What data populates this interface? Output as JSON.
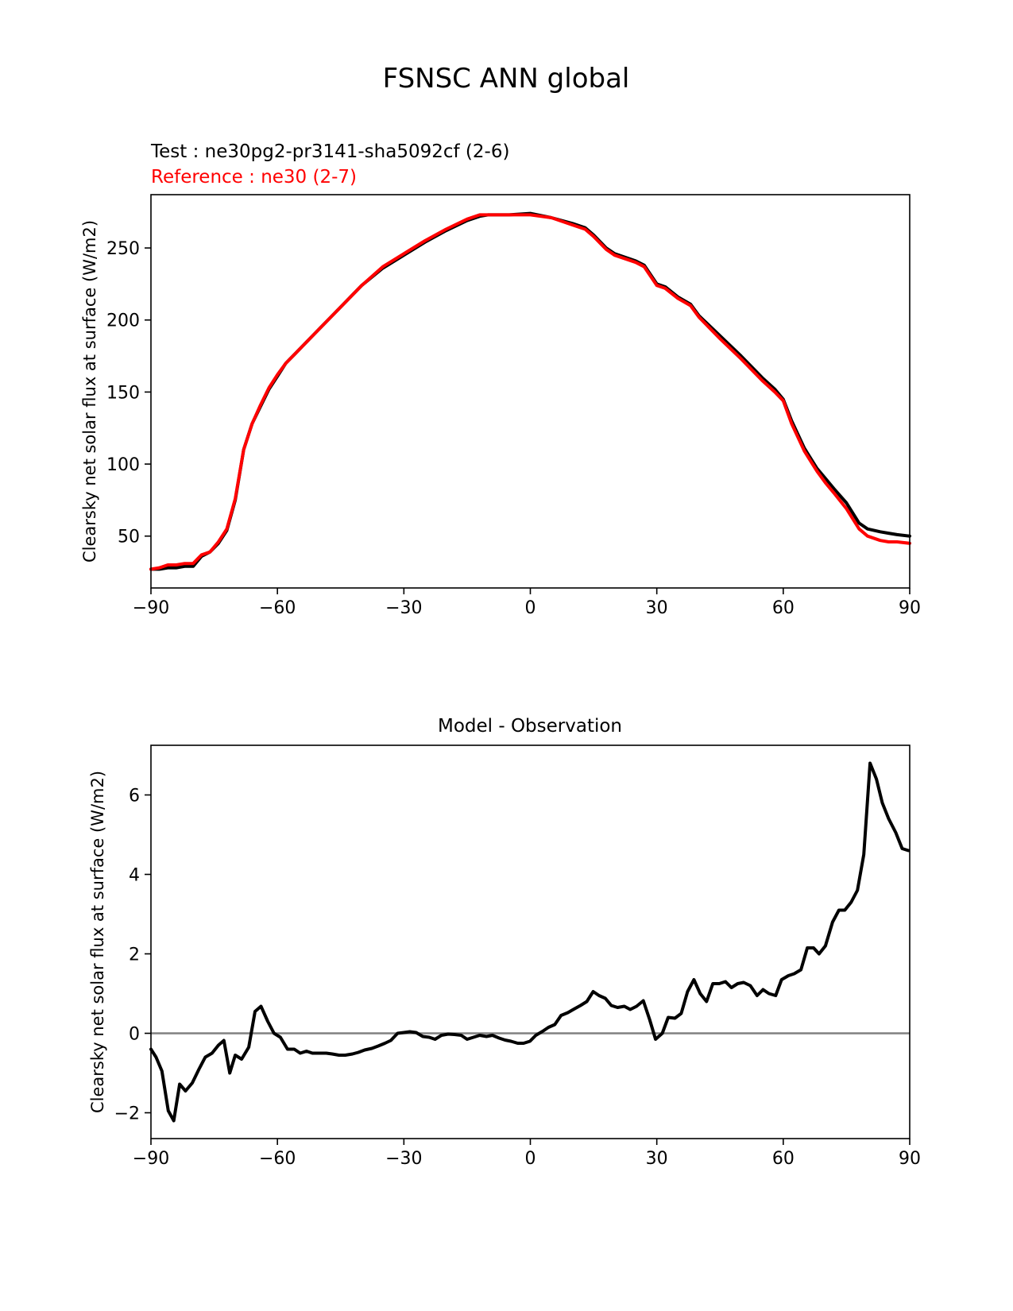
{
  "figure_title": "FSNSC ANN global",
  "top_legend": {
    "test_label": "Test : ne30pg2-pr3141-sha5092cf (2-6)",
    "reference_label": "Reference : ne30 (2-7)"
  },
  "colors": {
    "test": "#000000",
    "reference": "#ff0000",
    "zero_line": "#808080",
    "axis": "#000000"
  },
  "chart_data": [
    {
      "type": "line",
      "title": "",
      "xlabel": "",
      "ylabel": "Clearsky net solar flux at surface (W/m2)",
      "xlim": [
        -90,
        90
      ],
      "ylim": [
        14,
        287
      ],
      "xticks": [
        -90,
        -60,
        -30,
        0,
        30,
        60,
        90
      ],
      "xtick_labels": [
        "−90",
        "−60",
        "−30",
        "0",
        "30",
        "60",
        "90"
      ],
      "yticks": [
        50,
        100,
        150,
        200,
        250
      ],
      "ytick_labels": [
        "50",
        "100",
        "150",
        "200",
        "250"
      ],
      "series": [
        {
          "name": "Test : ne30pg2-pr3141-sha5092cf (2-6)",
          "color": "#000000",
          "x": [
            -90,
            -88,
            -86,
            -84,
            -82,
            -80,
            -78,
            -76,
            -74,
            -72,
            -70,
            -68,
            -66,
            -64,
            -62,
            -60,
            -58,
            -56,
            -54,
            -50,
            -45,
            -40,
            -35,
            -30,
            -25,
            -20,
            -15,
            -12,
            -10,
            -5,
            0,
            5,
            10,
            13,
            15,
            18,
            20,
            25,
            27,
            30,
            32,
            35,
            38,
            40,
            45,
            50,
            55,
            58,
            60,
            62,
            65,
            68,
            70,
            72,
            75,
            78,
            80,
            83,
            85,
            87,
            90
          ],
          "y": [
            27,
            27,
            28,
            28,
            29,
            29,
            36,
            39,
            45,
            54,
            75,
            110,
            128,
            140,
            152,
            161,
            170,
            176,
            182,
            194,
            209,
            224,
            236,
            245,
            254,
            262,
            269,
            272,
            273,
            273,
            274,
            271,
            267,
            264,
            259,
            250,
            246,
            241,
            238,
            225,
            223,
            216,
            211,
            203,
            189,
            175,
            160,
            152,
            145,
            130,
            111,
            97,
            90,
            83,
            73,
            59,
            55,
            53,
            52,
            51,
            50
          ]
        },
        {
          "name": "Reference : ne30 (2-7)",
          "color": "#ff0000",
          "x": [
            -90,
            -88,
            -86,
            -84,
            -82,
            -80,
            -78,
            -76,
            -74,
            -72,
            -70,
            -68,
            -66,
            -64,
            -62,
            -60,
            -58,
            -56,
            -54,
            -50,
            -45,
            -40,
            -35,
            -30,
            -25,
            -20,
            -15,
            -12,
            -10,
            -5,
            0,
            5,
            10,
            13,
            15,
            18,
            20,
            25,
            27,
            30,
            32,
            35,
            38,
            40,
            45,
            50,
            55,
            58,
            60,
            62,
            65,
            68,
            70,
            72,
            75,
            78,
            80,
            83,
            85,
            87,
            90
          ],
          "y": [
            27,
            28,
            30,
            30,
            31,
            31,
            37,
            39,
            46,
            55,
            76,
            110,
            128,
            141,
            153,
            162,
            170,
            176,
            182,
            194,
            209,
            224,
            237,
            246,
            255,
            263,
            270,
            273,
            273,
            273,
            273,
            271,
            266,
            263,
            258,
            249,
            245,
            240,
            237,
            224,
            222,
            215,
            210,
            202,
            187,
            173,
            158,
            150,
            144,
            128,
            109,
            95,
            87,
            80,
            69,
            55,
            50,
            47,
            46,
            46,
            45
          ]
        }
      ]
    },
    {
      "type": "line",
      "title": "Model - Observation",
      "xlabel": "",
      "ylabel": "Clearsky net solar flux at surface (W/m2)",
      "xlim": [
        -90,
        90
      ],
      "ylim": [
        -2.65,
        7.25
      ],
      "xticks": [
        -90,
        -60,
        -30,
        0,
        30,
        60,
        90
      ],
      "xtick_labels": [
        "−90",
        "−60",
        "−30",
        "0",
        "30",
        "60",
        "90"
      ],
      "yticks": [
        -2,
        0,
        2,
        4,
        6
      ],
      "ytick_labels": [
        "−2",
        "0",
        "2",
        "4",
        "6"
      ],
      "zero_line": 0,
      "series": [
        {
          "name": "Model - Observation",
          "color": "#000000",
          "x": [
            -90,
            -88.8,
            -87.4,
            -85.9,
            -84.6,
            -83.2,
            -81.8,
            -80.2,
            -78.6,
            -77.1,
            -75.5,
            -74,
            -72.7,
            -71.3,
            -70,
            -68.5,
            -66.8,
            -65.3,
            -63.9,
            -62.3,
            -60.8,
            -59.3,
            -57.6,
            -56,
            -54.6,
            -53.1,
            -51.7,
            -50.2,
            -48.4,
            -47,
            -45.4,
            -43.9,
            -42.2,
            -40.8,
            -39.3,
            -37.6,
            -36.1,
            -34.5,
            -33.1,
            -31.5,
            -30,
            -28.6,
            -27.1,
            -25.5,
            -24,
            -22.6,
            -21.1,
            -19.5,
            -18,
            -16.4,
            -15,
            -13.5,
            -12,
            -10.4,
            -9,
            -7.4,
            -6,
            -4.6,
            -3,
            -1.6,
            -0.1,
            1.3,
            2.9,
            4.3,
            5.8,
            7.3,
            8.9,
            10.2,
            11.9,
            13.4,
            14.9,
            16.3,
            17.8,
            19.2,
            20.7,
            22.3,
            23.7,
            25.2,
            26.8,
            28.3,
            29.7,
            31.3,
            32.7,
            34.3,
            35.8,
            37.3,
            38.8,
            40.3,
            41.8,
            43.3,
            44.8,
            46.3,
            47.7,
            49.2,
            50.6,
            52.2,
            53.8,
            55.2,
            56.6,
            58.2,
            59.6,
            61.2,
            62.6,
            64.2,
            65.7,
            67.2,
            68.5,
            70,
            71.7,
            73.2,
            74.6,
            76.1,
            77.6,
            79.1,
            80.6,
            82.1,
            83.5,
            85,
            86.7,
            88.2,
            89.7
          ],
          "y": [
            -0.4,
            -0.6,
            -0.95,
            -1.95,
            -2.2,
            -1.28,
            -1.45,
            -1.25,
            -0.9,
            -0.6,
            -0.5,
            -0.3,
            -0.18,
            -1.0,
            -0.55,
            -0.65,
            -0.35,
            0.55,
            0.68,
            0.3,
            0.0,
            -0.1,
            -0.4,
            -0.4,
            -0.5,
            -0.45,
            -0.5,
            -0.5,
            -0.5,
            -0.52,
            -0.55,
            -0.55,
            -0.52,
            -0.48,
            -0.42,
            -0.38,
            -0.32,
            -0.25,
            -0.18,
            0.0,
            0.02,
            0.04,
            0.02,
            -0.08,
            -0.1,
            -0.15,
            -0.05,
            -0.02,
            -0.03,
            -0.05,
            -0.15,
            -0.1,
            -0.05,
            -0.08,
            -0.05,
            -0.12,
            -0.17,
            -0.2,
            -0.25,
            -0.25,
            -0.2,
            -0.05,
            0.05,
            0.15,
            0.22,
            0.45,
            0.52,
            0.6,
            0.7,
            0.8,
            1.05,
            0.95,
            0.88,
            0.7,
            0.65,
            0.68,
            0.6,
            0.68,
            0.82,
            0.35,
            -0.15,
            0.0,
            0.4,
            0.38,
            0.5,
            1.05,
            1.35,
            1.0,
            0.8,
            1.25,
            1.25,
            1.3,
            1.15,
            1.25,
            1.28,
            1.2,
            0.95,
            1.1,
            1.0,
            0.95,
            1.35,
            1.45,
            1.5,
            1.6,
            2.15,
            2.15,
            2.0,
            2.2,
            2.8,
            3.1,
            3.1,
            3.3,
            3.6,
            4.5,
            6.8,
            6.4,
            5.8,
            5.4,
            5.05,
            4.65,
            4.6
          ]
        }
      ]
    }
  ]
}
